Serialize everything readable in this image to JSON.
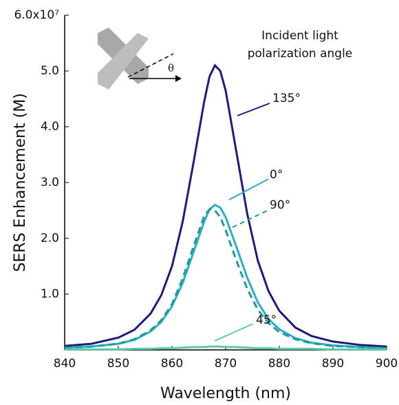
{
  "chart_data": {
    "type": "line",
    "y_label": "SERS Enhancement (M)",
    "x_label": "Wavelength (nm)",
    "annotations": [
      "Incident light",
      "polarization angle",
      "θ"
    ],
    "x": [
      840,
      845,
      850,
      853,
      856,
      858,
      860,
      862,
      864,
      866,
      867,
      868,
      869,
      870,
      872,
      874,
      876,
      878,
      880,
      883,
      886,
      890,
      895,
      900
    ],
    "series": [
      {
        "name": "135°",
        "color": "#1f1a7e",
        "dashed": false,
        "values": [
          0.07,
          0.11,
          0.22,
          0.36,
          0.65,
          0.98,
          1.5,
          2.3,
          3.35,
          4.45,
          4.9,
          5.1,
          5.0,
          4.65,
          3.55,
          2.45,
          1.6,
          1.05,
          0.7,
          0.4,
          0.25,
          0.15,
          0.09,
          0.06
        ]
      },
      {
        "name": "0°",
        "color": "#2aaec8",
        "dashed": false,
        "values": [
          0.04,
          0.06,
          0.11,
          0.18,
          0.33,
          0.5,
          0.78,
          1.2,
          1.75,
          2.3,
          2.52,
          2.6,
          2.55,
          2.38,
          1.85,
          1.3,
          0.85,
          0.55,
          0.37,
          0.21,
          0.13,
          0.08,
          0.05,
          0.03
        ]
      },
      {
        "name": "90°",
        "color": "#1f9a9e",
        "dashed": true,
        "values": [
          0.04,
          0.06,
          0.11,
          0.19,
          0.35,
          0.53,
          0.82,
          1.28,
          1.85,
          2.4,
          2.52,
          2.5,
          2.38,
          2.15,
          1.6,
          1.1,
          0.72,
          0.48,
          0.32,
          0.19,
          0.12,
          0.07,
          0.05,
          0.03
        ]
      },
      {
        "name": "45°",
        "color": "#5ec9a8",
        "dashed": false,
        "values": [
          0.01,
          0.01,
          0.01,
          0.02,
          0.02,
          0.03,
          0.03,
          0.04,
          0.05,
          0.05,
          0.06,
          0.06,
          0.06,
          0.05,
          0.05,
          0.04,
          0.03,
          0.03,
          0.02,
          0.02,
          0.02,
          0.01,
          0.01,
          0.01
        ]
      }
    ],
    "xlim": [
      840,
      900
    ],
    "xticks": [
      840,
      850,
      860,
      870,
      880,
      890,
      900
    ],
    "ylim": [
      0,
      6
    ],
    "yticks": [
      {
        "value": 1,
        "label": "1.0"
      },
      {
        "value": 2,
        "label": "2.0"
      },
      {
        "value": 3,
        "label": "3.0"
      },
      {
        "value": 4,
        "label": "4.0"
      },
      {
        "value": 5,
        "label": "5.0"
      },
      {
        "value": 6,
        "label": "6.0x10⁷"
      }
    ],
    "grid": false
  }
}
